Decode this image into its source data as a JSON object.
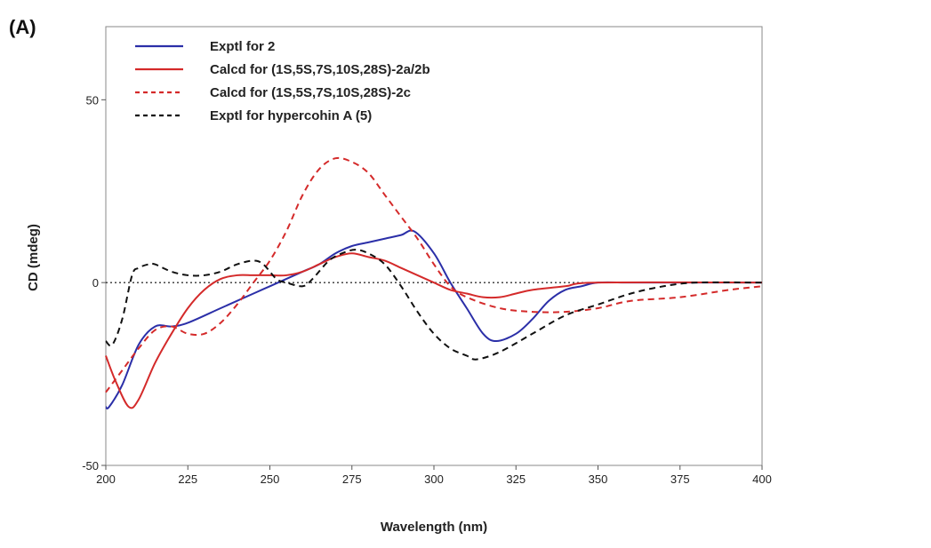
{
  "panel_label": "(A)",
  "chart_data": {
    "type": "line",
    "xlabel": "Wavelength (nm)",
    "ylabel": "CD (mdeg)",
    "xlim": [
      200,
      400
    ],
    "ylim": [
      -50,
      70
    ],
    "xticks": [
      200,
      225,
      250,
      275,
      300,
      325,
      350,
      375,
      400
    ],
    "yticks": [
      -50,
      0,
      50
    ],
    "grid": false,
    "zero_line": "dotted",
    "legend_position": "top-left",
    "series": [
      {
        "name": "Exptl for 2",
        "color": "#2b2fa8",
        "dash": "solid",
        "x": [
          200,
          201,
          205,
          210,
          215,
          220,
          225,
          235,
          245,
          250,
          255,
          260,
          265,
          270,
          275,
          280,
          285,
          290,
          294,
          300,
          305,
          310,
          315,
          319,
          325,
          330,
          335,
          340,
          345,
          350,
          360,
          375,
          400
        ],
        "y": [
          -34,
          -34,
          -28,
          -17,
          -12,
          -12,
          -11,
          -7,
          -3,
          -1,
          1,
          3,
          5,
          8,
          10,
          11,
          12,
          13,
          14,
          8,
          0,
          -7,
          -14,
          -16,
          -14,
          -10,
          -5,
          -2,
          -1,
          0,
          0,
          0,
          0
        ]
      },
      {
        "name": "Calcd for (1S,5S,7S,10S,28S)-2a/2b",
        "color": "#d42a2a",
        "dash": "solid",
        "x": [
          200,
          203,
          207,
          210,
          215,
          220,
          225,
          230,
          235,
          240,
          245,
          250,
          255,
          260,
          265,
          270,
          275,
          280,
          285,
          290,
          295,
          300,
          305,
          310,
          315,
          320,
          325,
          330,
          340,
          350,
          400
        ],
        "y": [
          -20,
          -27,
          -34,
          -32,
          -22,
          -14,
          -7,
          -2,
          1,
          2,
          2,
          2,
          2,
          3,
          5,
          7,
          8,
          7,
          6,
          4,
          2,
          0,
          -2,
          -3,
          -4,
          -4,
          -3,
          -2,
          -1,
          0,
          0
        ]
      },
      {
        "name": "Calcd for (1S,5S,7S,10S,28S)-2c",
        "color": "#d42a2a",
        "dash": "dashed",
        "x": [
          200,
          205,
          210,
          215,
          220,
          225,
          230,
          235,
          240,
          245,
          250,
          255,
          260,
          265,
          270,
          275,
          280,
          285,
          290,
          295,
          300,
          305,
          310,
          320,
          330,
          340,
          350,
          360,
          375,
          390,
          400
        ],
        "y": [
          -30,
          -24,
          -18,
          -13,
          -12,
          -14,
          -14,
          -11,
          -6,
          0,
          6,
          14,
          24,
          31,
          34,
          33,
          30,
          24,
          18,
          12,
          5,
          -1,
          -4,
          -7,
          -8,
          -8,
          -7,
          -5,
          -4,
          -2,
          -1
        ]
      },
      {
        "name": "Exptl for hypercohin A (5)",
        "color": "#111111",
        "dash": "dashed",
        "x": [
          200,
          202,
          205,
          208,
          210,
          213,
          215,
          220,
          225,
          230,
          235,
          240,
          245,
          248,
          252,
          255,
          260,
          263,
          268,
          272,
          276,
          280,
          285,
          290,
          295,
          300,
          305,
          310,
          313,
          320,
          330,
          340,
          350,
          360,
          370,
          380,
          400
        ],
        "y": [
          -16,
          -17,
          -10,
          2,
          4,
          5,
          5,
          3,
          2,
          2,
          3,
          5,
          6,
          5,
          1,
          0,
          -1,
          1,
          6,
          8,
          9,
          8,
          5,
          -1,
          -8,
          -14,
          -18,
          -20,
          -21,
          -19,
          -14,
          -9,
          -6,
          -3,
          -1,
          0,
          0
        ]
      }
    ]
  }
}
